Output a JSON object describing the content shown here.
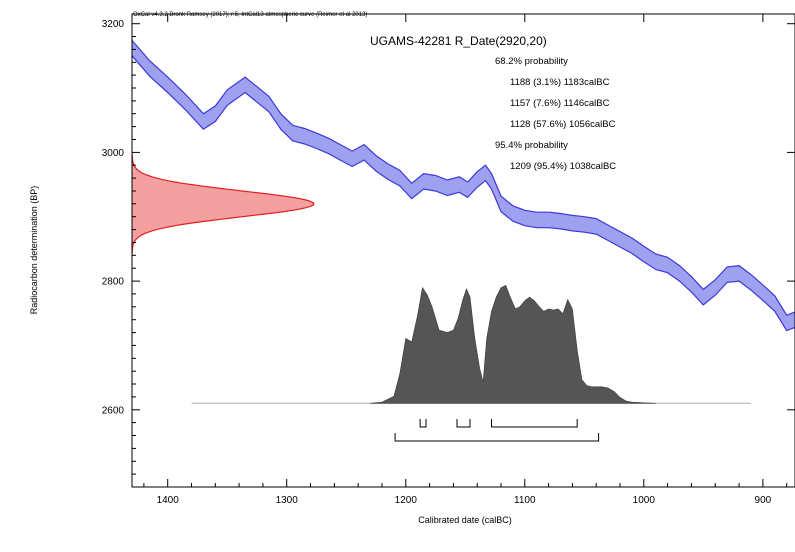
{
  "chart_data": {
    "type": "area",
    "credit": "OxCal v4.3.2 Bronk Ramsey (2017); r:5; IntCal13 atmospheric curve (Reimer et al 2013)",
    "title": "UGAMS-42281 R_Date(2920,20)",
    "xlabel": "Calibrated date (calBC)",
    "ylabel": "Radiocarbon determination (BP)",
    "xlim": [
      1430,
      873
    ],
    "ylim": [
      2480,
      3215
    ],
    "x_ticks": [
      1400,
      1300,
      1200,
      1100,
      1000,
      900
    ],
    "y_ticks": [
      2600,
      2800,
      3000,
      3200
    ],
    "annotations": [
      {
        "text": "68.2% probability",
        "indent": false
      },
      {
        "text": "1188 (3.1%) 1183calBC",
        "indent": true
      },
      {
        "text": "1157 (7.6%) 1146calBC",
        "indent": true
      },
      {
        "text": "1128 (57.6%) 1056calBC",
        "indent": true
      },
      {
        "text": "95.4% probability",
        "indent": false
      },
      {
        "text": "1209 (95.4%) 1038calBC",
        "indent": true
      }
    ],
    "calibration_curve": {
      "name": "IntCal13",
      "color": "#3a3ad8",
      "fill": "#a0a0f0",
      "half_width": 12,
      "x": [
        1430,
        1415,
        1400,
        1385,
        1370,
        1360,
        1350,
        1335,
        1325,
        1315,
        1305,
        1295,
        1285,
        1275,
        1265,
        1255,
        1245,
        1235,
        1225,
        1215,
        1205,
        1195,
        1185,
        1175,
        1165,
        1155,
        1148,
        1140,
        1133,
        1128,
        1120,
        1110,
        1100,
        1090,
        1080,
        1070,
        1060,
        1050,
        1040,
        1030,
        1020,
        1010,
        1000,
        990,
        980,
        970,
        960,
        950,
        940,
        930,
        920,
        910,
        900,
        890,
        880,
        873
      ],
      "y": [
        3162,
        3130,
        3105,
        3078,
        3048,
        3060,
        3085,
        3105,
        3090,
        3075,
        3048,
        3030,
        3025,
        3018,
        3010,
        3000,
        2990,
        3000,
        2983,
        2970,
        2960,
        2940,
        2955,
        2952,
        2945,
        2950,
        2942,
        2958,
        2968,
        2955,
        2920,
        2905,
        2898,
        2895,
        2895,
        2893,
        2890,
        2888,
        2885,
        2875,
        2865,
        2855,
        2842,
        2830,
        2825,
        2812,
        2795,
        2775,
        2790,
        2810,
        2812,
        2798,
        2782,
        2765,
        2735,
        2740
      ]
    },
    "radiocarbon_date": {
      "mean": 2920,
      "sd": 20,
      "color": "#e02020",
      "fill": "#f4a0a0"
    },
    "calibrated_distribution": {
      "color": "#555555",
      "baseline": 2610,
      "range": [
        1380,
        910
      ],
      "x": [
        1230,
        1220,
        1210,
        1205,
        1200,
        1195,
        1190,
        1186,
        1182,
        1178,
        1172,
        1165,
        1160,
        1156,
        1152,
        1149,
        1146,
        1142,
        1138,
        1135,
        1132,
        1128,
        1124,
        1120,
        1116,
        1113,
        1108,
        1104,
        1100,
        1096,
        1092,
        1088,
        1084,
        1080,
        1076,
        1072,
        1068,
        1064,
        1060,
        1056,
        1052,
        1048,
        1044,
        1040,
        1035,
        1030,
        1025,
        1020,
        1015,
        1010,
        1000,
        990
      ],
      "y": [
        0,
        0.01,
        0.06,
        0.25,
        0.55,
        0.52,
        0.75,
        0.98,
        0.92,
        0.82,
        0.62,
        0.6,
        0.62,
        0.72,
        0.88,
        0.97,
        0.9,
        0.55,
        0.3,
        0.18,
        0.55,
        0.78,
        0.9,
        0.98,
        1.0,
        0.92,
        0.8,
        0.82,
        0.87,
        0.9,
        0.87,
        0.82,
        0.78,
        0.8,
        0.79,
        0.8,
        0.76,
        0.88,
        0.8,
        0.45,
        0.2,
        0.15,
        0.14,
        0.14,
        0.14,
        0.13,
        0.1,
        0.05,
        0.02,
        0.01,
        0.005,
        0
      ]
    },
    "ranges_68": [
      [
        1188,
        1183
      ],
      [
        1157,
        1146
      ],
      [
        1128,
        1056
      ]
    ],
    "ranges_95": [
      [
        1209,
        1038
      ]
    ]
  }
}
